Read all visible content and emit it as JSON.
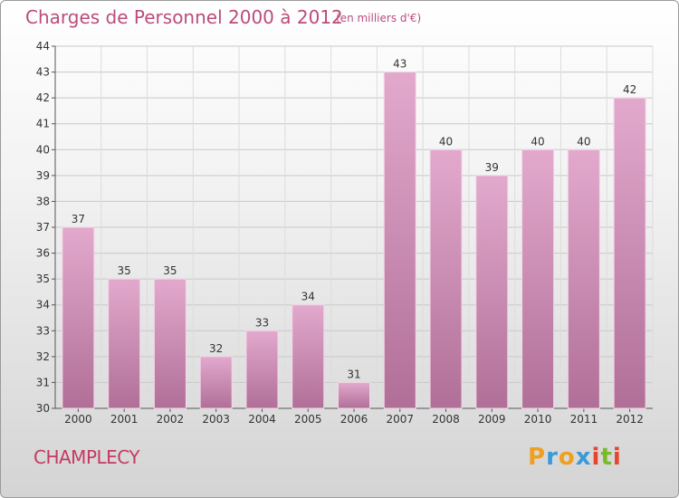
{
  "title": "Charges de Personnel 2000 à 2012",
  "subtitle": "(en milliers d'€)",
  "commune": "CHAMPLECY",
  "logo": {
    "letters": [
      "P",
      "r",
      "o",
      "x",
      "i",
      "t",
      "i"
    ],
    "colors": [
      "#f0a020",
      "#3a9ad9",
      "#f0a020",
      "#3a9ad9",
      "#e8452c",
      "#7ab928",
      "#e8452c"
    ]
  },
  "colors": {
    "bar_top": "#e3a9cd",
    "bar_bottom": "#b06f97",
    "title": "#bb4c7c",
    "commune": "#c43a63"
  },
  "chart_data": {
    "type": "bar",
    "title": "Charges de Personnel 2000 à 2012",
    "subtitle": "(en milliers d'€)",
    "categories": [
      "2000",
      "2001",
      "2002",
      "2003",
      "2004",
      "2005",
      "2006",
      "2007",
      "2008",
      "2009",
      "2010",
      "2011",
      "2012"
    ],
    "values": [
      37,
      35,
      35,
      32,
      33,
      34,
      31,
      43,
      40,
      39,
      40,
      40,
      42
    ],
    "ylim": [
      30,
      44
    ],
    "yticks": [
      30,
      31,
      32,
      33,
      34,
      35,
      36,
      37,
      38,
      39,
      40,
      41,
      42,
      43,
      44
    ],
    "grid": true
  }
}
